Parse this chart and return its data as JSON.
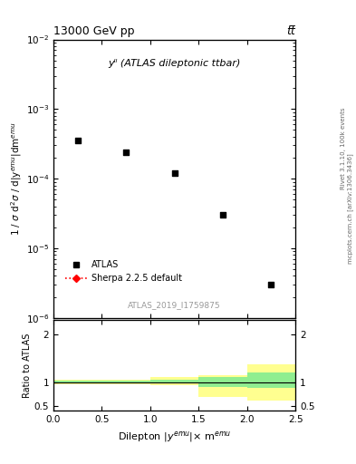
{
  "title_top": "13000 GeV pp",
  "title_top_right": "tt̅",
  "annotation": "yˡˡ (ATLAS dileptonic ttbar)",
  "atlas_id": "ATLAS_2019_I1759875",
  "right_label_top": "Rivet 3.1.10, 100k events",
  "right_label_bot": "mcplots.cern.ch [arXiv:1306.3436]",
  "xlabel": "Dilepton |y$^{emu}$|$\\times$ m$^{emu}$",
  "ylabel_main": "1 / σ d²σ / d|y$^{emu}$|dm$^{emu}$",
  "ylabel_ratio": "Ratio to ATLAS",
  "xlim": [
    0,
    2.5
  ],
  "ylim_main": [
    1e-06,
    0.01
  ],
  "ylim_ratio": [
    0.4,
    2.3
  ],
  "ratio_yticks": [
    0.5,
    1.0,
    2.0
  ],
  "data_x": [
    0.25,
    0.75,
    1.25,
    1.75,
    2.25
  ],
  "data_y": [
    0.00035,
    0.00024,
    0.00012,
    3e-05,
    3e-06
  ],
  "sherpa_band_x": [
    0.0,
    0.5,
    1.0,
    1.5,
    2.0,
    2.5
  ],
  "sherpa_ratio_green_lo": [
    0.97,
    0.97,
    0.97,
    0.9,
    0.88
  ],
  "sherpa_ratio_green_hi": [
    1.03,
    1.03,
    1.05,
    1.1,
    1.2
  ],
  "sherpa_ratio_yellow_lo": [
    0.95,
    0.95,
    0.94,
    0.68,
    0.62
  ],
  "sherpa_ratio_yellow_hi": [
    1.05,
    1.05,
    1.1,
    1.15,
    1.38
  ],
  "color_green": "#90EE90",
  "color_yellow": "#FFFF90",
  "legend_atlas_label": "ATLAS",
  "legend_sherpa_label": "Sherpa 2.2.5 default",
  "bg_color": "#ffffff"
}
